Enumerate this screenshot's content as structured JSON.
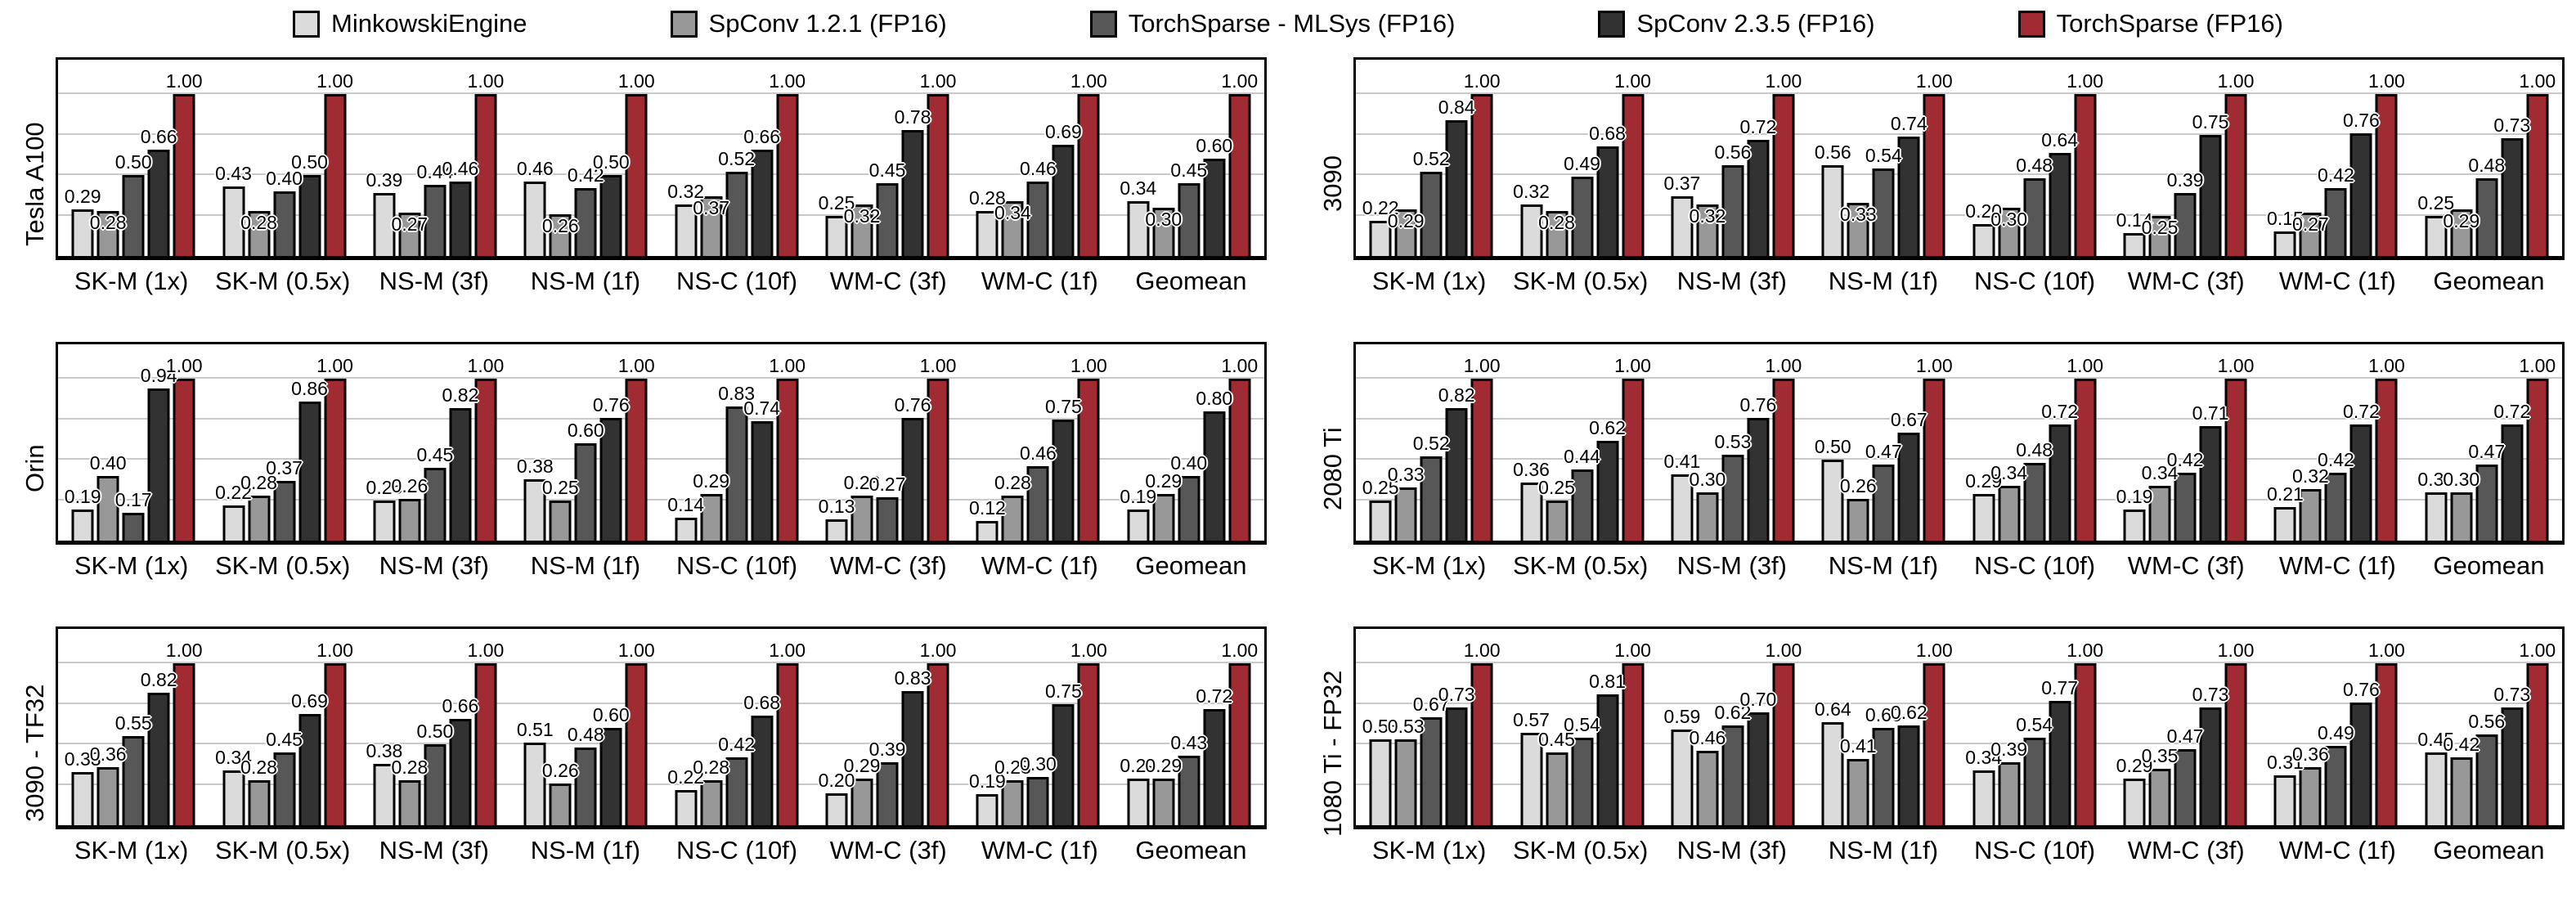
{
  "legend": {
    "items": [
      {
        "label": "MinkowskiEngine",
        "color": "#DBDBDB"
      },
      {
        "label": "SpConv 1.2.1 (FP16)",
        "color": "#989898"
      },
      {
        "label": "TorchSparse - MLSys (FP16)",
        "color": "#575757"
      },
      {
        "label": "SpConv 2.3.5 (FP16)",
        "color": "#323232"
      },
      {
        "label": "TorchSparse (FP16)",
        "color": "#A12B32"
      }
    ]
  },
  "chart_data": [
    {
      "type": "bar",
      "gpu_label": "Tesla A100",
      "grid_position": "row1-col1",
      "categories": [
        "SK-M (1x)",
        "SK-M (0.5x)",
        "NS-M (3f)",
        "NS-M (1f)",
        "NS-C (10f)",
        "WM-C (3f)",
        "WM-C (1f)",
        "Geomean"
      ],
      "series": [
        {
          "name": "MinkowskiEngine",
          "values": [
            0.29,
            0.43,
            0.39,
            0.46,
            0.32,
            0.25,
            0.28,
            0.34
          ]
        },
        {
          "name": "SpConv 1.2.1 (FP16)",
          "values": [
            0.28,
            0.28,
            0.27,
            0.26,
            0.37,
            0.32,
            0.34,
            0.3
          ]
        },
        {
          "name": "TorchSparse - MLSys (FP16)",
          "values": [
            0.5,
            0.4,
            0.44,
            0.42,
            0.52,
            0.45,
            0.46,
            0.45
          ]
        },
        {
          "name": "SpConv 2.3.5 (FP16)",
          "values": [
            0.66,
            0.5,
            0.46,
            0.5,
            0.66,
            0.78,
            0.69,
            0.6
          ]
        },
        {
          "name": "TorchSparse (FP16)",
          "values": [
            1.0,
            1.0,
            1.0,
            1.0,
            1.0,
            1.0,
            1.0,
            1.0
          ]
        }
      ],
      "ylim": [
        0,
        1.215
      ],
      "gridlines": [
        0.25,
        0.5,
        0.75,
        1.0
      ],
      "grid_on": true,
      "value_label_format": "2dp",
      "series2_labels_inside": true
    },
    {
      "type": "bar",
      "gpu_label": "3090",
      "grid_position": "row1-col2",
      "categories": [
        "SK-M (1x)",
        "SK-M (0.5x)",
        "NS-M (3f)",
        "NS-M (1f)",
        "NS-C (10f)",
        "WM-C (3f)",
        "WM-C (1f)",
        "Geomean"
      ],
      "series": [
        {
          "name": "MinkowskiEngine",
          "values": [
            0.22,
            0.32,
            0.37,
            0.56,
            0.2,
            0.14,
            0.15,
            0.25
          ]
        },
        {
          "name": "SpConv 1.2.1 (FP16)",
          "values": [
            0.29,
            0.28,
            0.32,
            0.33,
            0.3,
            0.25,
            0.27,
            0.29
          ]
        },
        {
          "name": "TorchSparse - MLSys (FP16)",
          "values": [
            0.52,
            0.49,
            0.56,
            0.54,
            0.48,
            0.39,
            0.42,
            0.48
          ]
        },
        {
          "name": "SpConv 2.3.5 (FP16)",
          "values": [
            0.84,
            0.68,
            0.72,
            0.74,
            0.64,
            0.75,
            0.76,
            0.73
          ]
        },
        {
          "name": "TorchSparse (FP16)",
          "values": [
            1.0,
            1.0,
            1.0,
            1.0,
            1.0,
            1.0,
            1.0,
            1.0
          ]
        }
      ],
      "ylim": [
        0,
        1.215
      ],
      "gridlines": [
        0.25,
        0.5,
        0.75,
        1.0
      ],
      "grid_on": true,
      "value_label_format": "2dp",
      "series2_labels_inside": true
    },
    {
      "type": "bar",
      "gpu_label": "Orin",
      "grid_position": "row2-col1",
      "categories": [
        "SK-M (1x)",
        "SK-M (0.5x)",
        "NS-M (3f)",
        "NS-M (1f)",
        "NS-C (10f)",
        "WM-C (3f)",
        "WM-C (1f)",
        "Geomean"
      ],
      "series": [
        {
          "name": "MinkowskiEngine",
          "values": [
            0.19,
            0.22,
            0.25,
            0.38,
            0.14,
            0.13,
            0.12,
            0.19
          ]
        },
        {
          "name": "SpConv 1.2.1 (FP16)",
          "values": [
            0.4,
            0.28,
            0.26,
            0.25,
            0.29,
            0.28,
            0.28,
            0.29
          ]
        },
        {
          "name": "TorchSparse - MLSys (FP16)",
          "values": [
            0.17,
            0.37,
            0.45,
            0.6,
            0.83,
            0.27,
            0.46,
            0.4
          ]
        },
        {
          "name": "SpConv 2.3.5 (FP16)",
          "values": [
            0.94,
            0.86,
            0.82,
            0.76,
            0.74,
            0.76,
            0.75,
            0.8
          ]
        },
        {
          "name": "TorchSparse (FP16)",
          "values": [
            1.0,
            1.0,
            1.0,
            1.0,
            1.0,
            1.0,
            1.0,
            1.0
          ]
        }
      ],
      "ylim": [
        0,
        1.215
      ],
      "gridlines": [
        0.25,
        0.5,
        0.75,
        1.0
      ],
      "grid_on": true,
      "value_label_format": "2dp",
      "series2_labels_inside": false
    },
    {
      "type": "bar",
      "gpu_label": "2080 Ti",
      "grid_position": "row2-col2",
      "categories": [
        "SK-M (1x)",
        "SK-M (0.5x)",
        "NS-M (3f)",
        "NS-M (1f)",
        "NS-C (10f)",
        "WM-C (3f)",
        "WM-C (1f)",
        "Geomean"
      ],
      "series": [
        {
          "name": "MinkowskiEngine",
          "values": [
            0.25,
            0.36,
            0.41,
            0.5,
            0.29,
            0.19,
            0.21,
            0.3
          ]
        },
        {
          "name": "SpConv 1.2.1 (FP16)",
          "values": [
            0.33,
            0.25,
            0.3,
            0.26,
            0.34,
            0.34,
            0.32,
            0.3
          ]
        },
        {
          "name": "TorchSparse - MLSys (FP16)",
          "values": [
            0.52,
            0.44,
            0.53,
            0.47,
            0.48,
            0.42,
            0.42,
            0.47
          ]
        },
        {
          "name": "SpConv 2.3.5 (FP16)",
          "values": [
            0.82,
            0.62,
            0.76,
            0.67,
            0.72,
            0.71,
            0.72,
            0.72
          ]
        },
        {
          "name": "TorchSparse (FP16)",
          "values": [
            1.0,
            1.0,
            1.0,
            1.0,
            1.0,
            1.0,
            1.0,
            1.0
          ]
        }
      ],
      "ylim": [
        0,
        1.215
      ],
      "gridlines": [
        0.25,
        0.5,
        0.75,
        1.0
      ],
      "grid_on": true,
      "value_label_format": "2dp",
      "series2_labels_inside": false
    },
    {
      "type": "bar",
      "gpu_label": "3090 - TF32",
      "grid_position": "row3-col1",
      "categories": [
        "SK-M (1x)",
        "SK-M (0.5x)",
        "NS-M (3f)",
        "NS-M (1f)",
        "NS-C (10f)",
        "WM-C (3f)",
        "WM-C (1f)",
        "Geomean"
      ],
      "series": [
        {
          "name": "MinkowskiEngine",
          "values": [
            0.33,
            0.34,
            0.38,
            0.51,
            0.22,
            0.2,
            0.19,
            0.29
          ]
        },
        {
          "name": "SpConv 1.2.1 (FP16)",
          "values": [
            0.36,
            0.28,
            0.28,
            0.26,
            0.28,
            0.29,
            0.28,
            0.29
          ]
        },
        {
          "name": "TorchSparse - MLSys (FP16)",
          "values": [
            0.55,
            0.45,
            0.5,
            0.48,
            0.42,
            0.39,
            0.3,
            0.43
          ]
        },
        {
          "name": "SpConv 2.3.5 (FP16)",
          "values": [
            0.82,
            0.69,
            0.66,
            0.6,
            0.68,
            0.83,
            0.75,
            0.72
          ]
        },
        {
          "name": "TorchSparse (FP16)",
          "values": [
            1.0,
            1.0,
            1.0,
            1.0,
            1.0,
            1.0,
            1.0,
            1.0
          ]
        }
      ],
      "ylim": [
        0,
        1.215
      ],
      "gridlines": [
        0.25,
        0.5,
        0.75,
        1.0
      ],
      "grid_on": true,
      "value_label_format": "2dp",
      "series2_labels_inside": false
    },
    {
      "type": "bar",
      "gpu_label": "1080 Ti - FP32",
      "grid_position": "row3-col2",
      "categories": [
        "SK-M (1x)",
        "SK-M (0.5x)",
        "NS-M (3f)",
        "NS-M (1f)",
        "NS-C (10f)",
        "WM-C (3f)",
        "WM-C (1f)",
        "Geomean"
      ],
      "series": [
        {
          "name": "MinkowskiEngine",
          "values": [
            0.53,
            0.57,
            0.59,
            0.64,
            0.34,
            0.29,
            0.31,
            0.45
          ]
        },
        {
          "name": "SpConv 1.2.1 (FP16)",
          "values": [
            0.53,
            0.45,
            0.46,
            0.41,
            0.39,
            0.35,
            0.36,
            0.42
          ]
        },
        {
          "name": "TorchSparse - MLSys (FP16)",
          "values": [
            0.67,
            0.54,
            0.62,
            0.6,
            0.54,
            0.47,
            0.49,
            0.56
          ]
        },
        {
          "name": "SpConv 2.3.5 (FP16)",
          "values": [
            0.73,
            0.81,
            0.7,
            0.62,
            0.77,
            0.73,
            0.76,
            0.73
          ]
        },
        {
          "name": "TorchSparse (FP16)",
          "values": [
            1.0,
            1.0,
            1.0,
            1.0,
            1.0,
            1.0,
            1.0,
            1.0
          ]
        }
      ],
      "ylim": [
        0,
        1.215
      ],
      "gridlines": [
        0.25,
        0.5,
        0.75,
        1.0
      ],
      "grid_on": true,
      "value_label_format": "2dp",
      "series2_labels_inside": false
    }
  ]
}
